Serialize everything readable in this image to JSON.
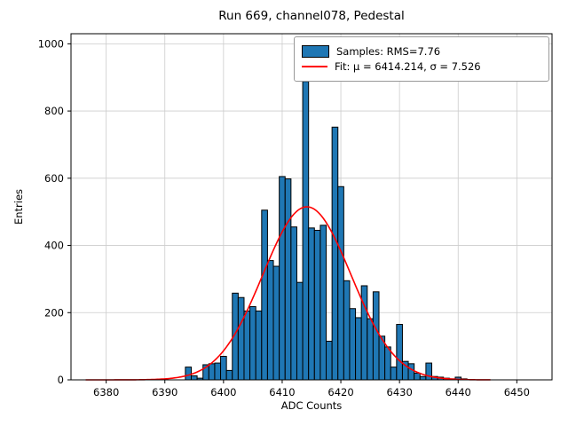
{
  "chart_data": {
    "type": "bar",
    "title": "Run 669, channel078, Pedestal",
    "xlabel": "ADC Counts",
    "ylabel": "Entries",
    "xlim": [
      6374,
      6456
    ],
    "ylim": [
      0,
      1030
    ],
    "xticks": [
      6380,
      6390,
      6400,
      6410,
      6420,
      6430,
      6440,
      6450
    ],
    "yticks": [
      0,
      200,
      400,
      600,
      800,
      1000
    ],
    "grid": true,
    "bar_color": "#1f77b4",
    "bar_edge_color": "#000000",
    "fit_color": "#ff0000",
    "bin_width": 1,
    "bin_centers": [
      6394,
      6395,
      6396,
      6397,
      6398,
      6399,
      6400,
      6401,
      6402,
      6403,
      6404,
      6405,
      6406,
      6407,
      6408,
      6409,
      6410,
      6411,
      6412,
      6413,
      6414,
      6415,
      6416,
      6417,
      6418,
      6419,
      6420,
      6421,
      6422,
      6423,
      6424,
      6425,
      6426,
      6427,
      6428,
      6429,
      6430,
      6431,
      6432,
      6433,
      6434,
      6435,
      6436,
      6437,
      6438,
      6439,
      6440,
      6441
    ],
    "counts": [
      38,
      12,
      5,
      45,
      48,
      50,
      70,
      28,
      258,
      245,
      205,
      218,
      205,
      505,
      355,
      338,
      605,
      598,
      455,
      290,
      888,
      452,
      445,
      460,
      115,
      752,
      575,
      295,
      212,
      185,
      280,
      182,
      262,
      130,
      98,
      38,
      165,
      55,
      48,
      20,
      10,
      50,
      10,
      8,
      5,
      3,
      8,
      3
    ],
    "fit": {
      "mu": 6414.214,
      "sigma": 7.526,
      "amplitude": 515,
      "x_start": 6376.5,
      "x_end": 6445.5
    },
    "legend": [
      {
        "type": "patch",
        "label": "Samples: RMS=7.76"
      },
      {
        "type": "line",
        "label": "Fit: μ = 6414.214, σ = 7.526"
      }
    ]
  }
}
